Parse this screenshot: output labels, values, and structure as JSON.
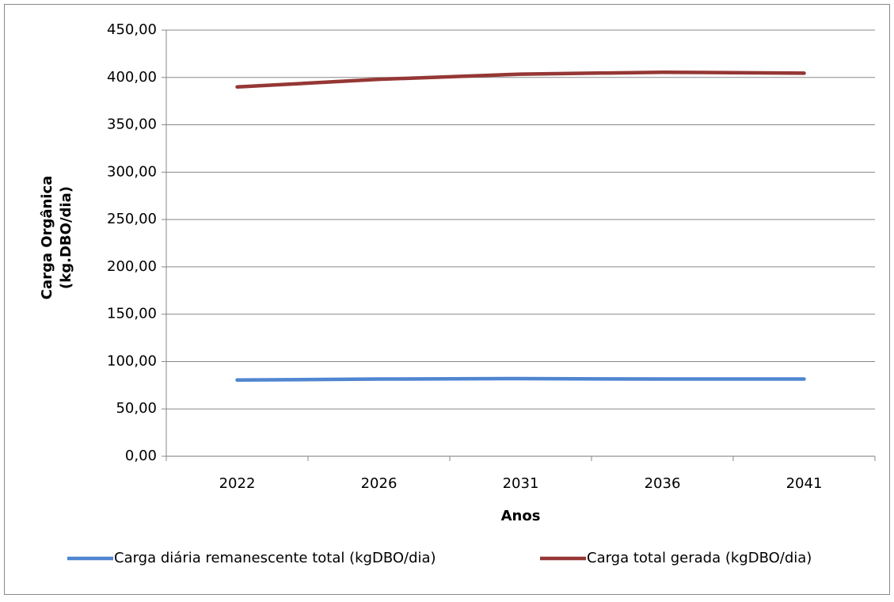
{
  "chart_data": {
    "type": "line",
    "x_label": "Anos",
    "y_label": [
      "Carga Orgânica",
      "(kg.DBO/dia)"
    ],
    "categories": [
      "2022",
      "2026",
      "2031",
      "2036",
      "2041"
    ],
    "series": [
      {
        "name": "Carga diária remanescente total (kgDBO/dia)",
        "color": "#4f86d0",
        "values": [
          80.5,
          81.5,
          82,
          81.5,
          81.5
        ]
      },
      {
        "name": "Carga total gerada (kgDBO/dia)",
        "color": "#953735",
        "values": [
          390,
          398,
          403.5,
          405.5,
          404.5
        ]
      }
    ],
    "ylim": [
      0,
      450
    ],
    "yticks": [
      {
        "value": 0,
        "label": "0,00"
      },
      {
        "value": 50,
        "label": "50,00"
      },
      {
        "value": 100,
        "label": "100,00"
      },
      {
        "value": 150,
        "label": "150,00"
      },
      {
        "value": 200,
        "label": "200,00"
      },
      {
        "value": 250,
        "label": "250,00"
      },
      {
        "value": 300,
        "label": "300,00"
      },
      {
        "value": 350,
        "label": "350,00"
      },
      {
        "value": 400,
        "label": "400,00"
      },
      {
        "value": 450,
        "label": "450,00"
      }
    ],
    "grid": true,
    "legend": "bottom"
  }
}
